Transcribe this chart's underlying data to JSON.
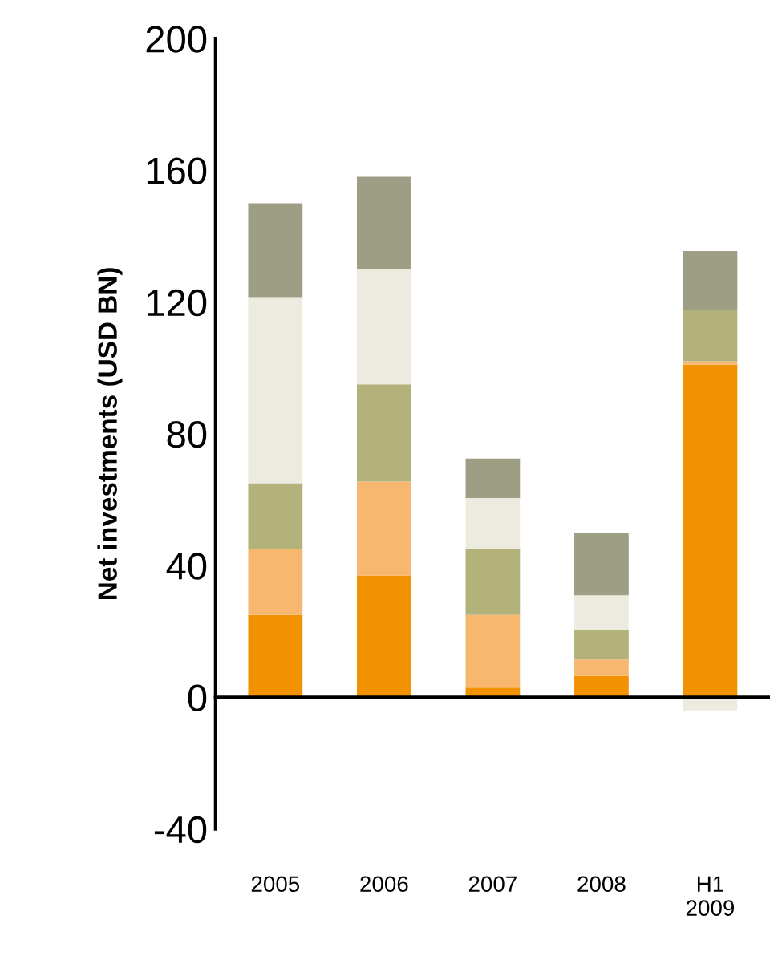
{
  "chart_data": {
    "type": "bar",
    "stacked": true,
    "ylabel": "Net investments (USD BN)",
    "categories": [
      "2005",
      "2006",
      "2007",
      "2008",
      "H1\n2009"
    ],
    "series": [
      {
        "color": "#f39200",
        "values": [
          25,
          37,
          3,
          6.5,
          101
        ]
      },
      {
        "color": "#f7b76f",
        "values": [
          20,
          28.5,
          22,
          5,
          1
        ]
      },
      {
        "color": "#b2b27a",
        "values": [
          20,
          29.5,
          20,
          9,
          15.5
        ]
      },
      {
        "color": "#edebe0",
        "values": [
          56.5,
          35,
          15.5,
          10.5,
          -4
        ]
      },
      {
        "color": "#9e9e85",
        "values": [
          28.5,
          28,
          12,
          19,
          18
        ]
      }
    ],
    "ylim": [
      -40,
      200
    ],
    "yticks": [
      -40,
      0,
      40,
      80,
      120,
      160,
      200
    ],
    "legend": false
  }
}
